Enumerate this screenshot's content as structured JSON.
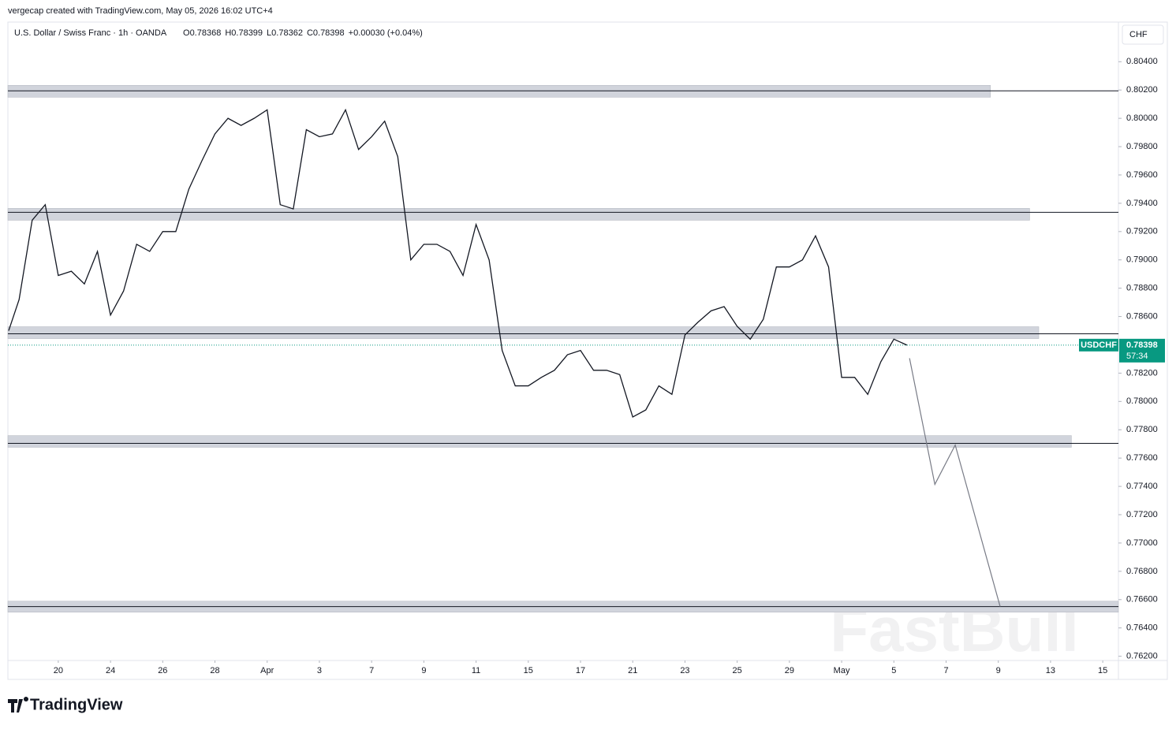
{
  "header": "vergecap created with TradingView.com, May 05, 2026 16:02 UTC+4",
  "chart_data": {
    "type": "line",
    "title": "U.S. Dollar / Swiss Franc · 1h · OANDA",
    "ohlc_labels": [
      "O",
      "H",
      "L",
      "C"
    ],
    "ohlc": [
      0.78368,
      0.78399,
      0.78362,
      0.78398
    ],
    "change": "+0.00030 (+0.04%)",
    "currency": "CHF",
    "symbol": "USDCHF",
    "last_price": {
      "value": 0.78398,
      "label": "0.78398"
    },
    "countdown": "57:34",
    "watermark": "FastBull",
    "x": [
      -1.9,
      -1.5,
      -1,
      -0.5,
      0,
      0.5,
      1,
      1.5,
      2,
      2.5,
      3,
      3.5,
      4,
      4.5,
      5,
      5.5,
      6,
      6.5,
      7,
      7.5,
      8,
      8.5,
      9,
      9.5,
      10,
      10.5,
      11,
      11.5,
      12,
      12.5,
      13,
      13.5,
      14,
      14.5,
      15,
      15.5,
      16,
      16.5,
      17,
      17.5,
      18,
      18.5,
      19,
      19.5,
      20,
      20.5,
      21,
      21.5,
      22,
      22.5,
      23,
      23.5,
      24,
      24.5,
      25,
      25.5,
      26,
      26.5,
      27,
      27.5,
      28,
      28.5,
      29,
      29.5,
      30,
      30.5,
      31,
      31.5,
      32,
      32.5
    ],
    "series": [
      {
        "name": "USDCHF",
        "color": "#131722",
        "values": [
          0.785,
          0.7872,
          0.7928,
          0.7939,
          0.7889,
          0.7892,
          0.7883,
          0.7906,
          0.7861,
          0.7878,
          0.7911,
          0.7906,
          0.792,
          0.792,
          0.795,
          0.797,
          0.7989,
          0.8,
          0.7995,
          0.8,
          0.8006,
          0.7939,
          0.7936,
          0.7992,
          0.7987,
          0.7989,
          0.8006,
          0.7978,
          0.7987,
          0.7998,
          0.7973,
          0.79,
          0.7911,
          0.7911,
          0.7906,
          0.7889,
          0.7925,
          0.79,
          0.7836,
          0.7811,
          0.7811,
          0.7817,
          0.7822,
          0.7833,
          0.7836,
          0.7822,
          0.7822,
          0.7819,
          0.7789,
          0.7794,
          0.7811,
          0.7805,
          0.7847,
          0.7856,
          0.7864,
          0.7867,
          0.7853,
          0.7844,
          0.7858,
          0.7895,
          0.7895,
          0.79,
          0.7917,
          0.7895,
          0.7817,
          0.7817,
          0.7805,
          0.7828,
          0.7844,
          0.78398
        ]
      }
    ],
    "zones": [
      {
        "low": 0.80149,
        "high": 0.80233,
        "x_end": 35.7,
        "line": 0.80194
      },
      {
        "low": 0.7928,
        "high": 0.79364,
        "x_end": 37.2,
        "line": 0.79336
      },
      {
        "low": 0.78444,
        "high": 0.78528,
        "x_end": 37.55,
        "line": 0.78478
      },
      {
        "low": 0.77676,
        "high": 0.77759,
        "x_end": 38.8,
        "line": 0.77704
      },
      {
        "low": 0.76511,
        "high": 0.76589,
        "x_end": 40.6,
        "line": 0.76551
      }
    ],
    "projection": {
      "x": [
        32.6,
        33.57,
        34.35,
        36.07
      ],
      "values": [
        0.78305,
        0.77414,
        0.77692,
        0.76551
      ]
    },
    "xlim": [
      -1.93,
      40.6
    ],
    "ylim": [
      0.7617,
      0.8068
    ],
    "xticks": [
      {
        "value": 0,
        "label": "20"
      },
      {
        "value": 2,
        "label": "24"
      },
      {
        "value": 4,
        "label": "26"
      },
      {
        "value": 6,
        "label": "28"
      },
      {
        "value": 8,
        "label": "Apr"
      },
      {
        "value": 10,
        "label": "3"
      },
      {
        "value": 12,
        "label": "7"
      },
      {
        "value": 14,
        "label": "9"
      },
      {
        "value": 16,
        "label": "11"
      },
      {
        "value": 18,
        "label": "15"
      },
      {
        "value": 20,
        "label": "17"
      },
      {
        "value": 22,
        "label": "21"
      },
      {
        "value": 24,
        "label": "23"
      },
      {
        "value": 26,
        "label": "25"
      },
      {
        "value": 28,
        "label": "29"
      },
      {
        "value": 30,
        "label": "May"
      },
      {
        "value": 32,
        "label": "5"
      },
      {
        "value": 34,
        "label": "7"
      },
      {
        "value": 36,
        "label": "9"
      },
      {
        "value": 38,
        "label": "13"
      },
      {
        "value": 40,
        "label": "15"
      }
    ],
    "yticks": [
      {
        "value": 0.804,
        "label": "0.80400"
      },
      {
        "value": 0.802,
        "label": "0.80200"
      },
      {
        "value": 0.8,
        "label": "0.80000"
      },
      {
        "value": 0.798,
        "label": "0.79800"
      },
      {
        "value": 0.796,
        "label": "0.79600"
      },
      {
        "value": 0.794,
        "label": "0.79400"
      },
      {
        "value": 0.792,
        "label": "0.79200"
      },
      {
        "value": 0.79,
        "label": "0.79000"
      },
      {
        "value": 0.788,
        "label": "0.78800"
      },
      {
        "value": 0.786,
        "label": "0.78600"
      },
      {
        "value": 0.782,
        "label": "0.78200"
      },
      {
        "value": 0.78,
        "label": "0.78000"
      },
      {
        "value": 0.778,
        "label": "0.77800"
      },
      {
        "value": 0.776,
        "label": "0.77600"
      },
      {
        "value": 0.774,
        "label": "0.77400"
      },
      {
        "value": 0.772,
        "label": "0.77200"
      },
      {
        "value": 0.77,
        "label": "0.77000"
      },
      {
        "value": 0.768,
        "label": "0.76800"
      },
      {
        "value": 0.766,
        "label": "0.76600"
      },
      {
        "value": 0.764,
        "label": "0.76400"
      },
      {
        "value": 0.762,
        "label": "0.76200"
      }
    ],
    "grid": false
  },
  "footer": "TradingView"
}
